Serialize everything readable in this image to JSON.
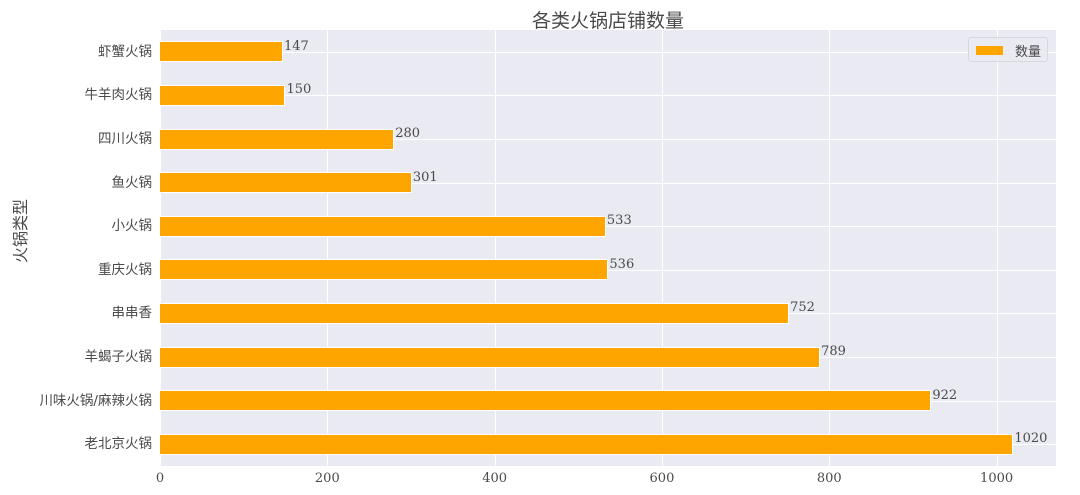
{
  "chart_data": {
    "type": "bar",
    "orientation": "horizontal",
    "title": "各类火锅店铺数量",
    "xlabel": "",
    "ylabel": "火锅类型",
    "categories": [
      "虾蟹火锅",
      "牛羊肉火锅",
      "四川火锅",
      "鱼火锅",
      "小火锅",
      "重庆火锅",
      "串串香",
      "羊蝎子火锅",
      "川味火锅/麻辣火锅",
      "老北京火锅"
    ],
    "series": [
      {
        "name": "数量",
        "values": [
          147,
          150,
          280,
          301,
          533,
          536,
          752,
          789,
          922,
          1020
        ],
        "color": "#FFA500"
      }
    ],
    "xlim": [
      0,
      1071
    ],
    "xticks": [
      0,
      200,
      400,
      600,
      800,
      1000
    ],
    "grid": true,
    "legend_position": "upper right",
    "background": "#EAEAF2",
    "data_labels": true
  },
  "ui": {
    "title": "各类火锅店铺数量",
    "ylabel": "火锅类型",
    "legend_label": "数量",
    "xtick_labels": [
      "0",
      "200",
      "400",
      "600",
      "800",
      "1000"
    ]
  }
}
